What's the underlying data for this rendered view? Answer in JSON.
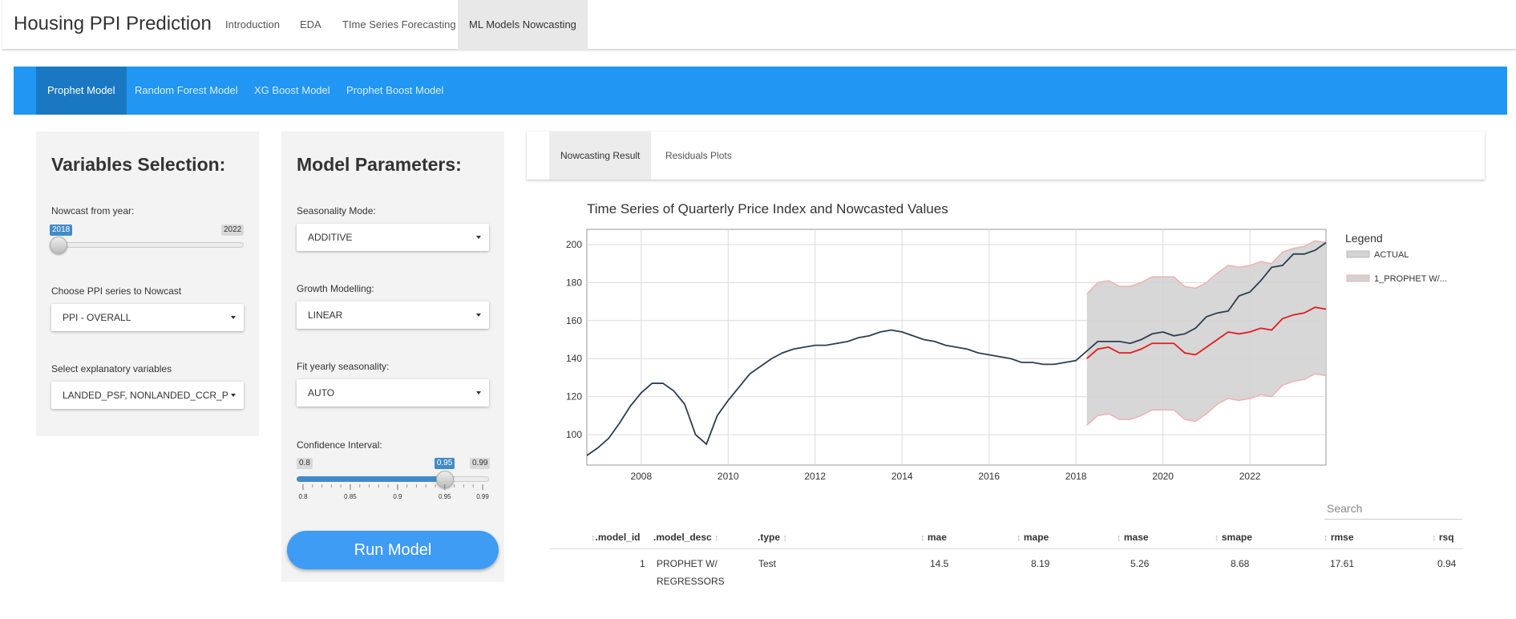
{
  "app_title": "Housing PPI Prediction",
  "nav_tabs": [
    "Introduction",
    "EDA",
    "TIme Series Forecasting",
    "ML Models Nowcasting"
  ],
  "sub_tabs": [
    "Prophet Model",
    "Random Forest Model",
    "XG Boost Model",
    "Prophet Boost Model"
  ],
  "variables_panel": {
    "title": "Variables Selection:",
    "nowcast_label": "Nowcast from year:",
    "nowcast_min": "2018",
    "nowcast_max": "2022",
    "nowcast_fraction": 0.0,
    "ppi_label": "Choose PPI series to Nowcast",
    "ppi_value": "PPI - OVERALL",
    "explanatory_label": "Select explanatory variables",
    "explanatory_value": "LANDED_PSF, NONLANDED_CCR_P"
  },
  "params_panel": {
    "title": "Model Parameters:",
    "seasonality_label": "Seasonality Mode:",
    "seasonality_value": "ADDITIVE",
    "growth_label": "Growth Modelling:",
    "growth_value": "LINEAR",
    "yearly_label": "Fit yearly seasonality:",
    "yearly_value": "AUTO",
    "ci_label": "Confidence Interval:",
    "ci_min": "0.8",
    "ci_max": "0.99",
    "ci_value": "0.95",
    "ci_ticks": [
      "0.8",
      "0.85",
      "0.9",
      "0.95",
      "0.99"
    ]
  },
  "run_button": "Run Model",
  "result_tabs": [
    "Nowcasting Result",
    "Residuals Plots"
  ],
  "chart_data": {
    "type": "line",
    "title": "Time Series of Quarterly Price Index and Nowcasted Values",
    "legend_title": "Legend",
    "legend_placement": "right",
    "x_ticks": [
      "2008",
      "2010",
      "2012",
      "2014",
      "2016",
      "2018",
      "2020",
      "2022"
    ],
    "y_ticks": [
      "100",
      "120",
      "140",
      "160",
      "180",
      "200"
    ],
    "xlim": [
      2006.75,
      2023.75
    ],
    "ylim": [
      84,
      208
    ],
    "grid": true,
    "colors": {
      "actual": "#2c3e50",
      "forecast": "#e41a1c",
      "band_fill": "#d3d3d3",
      "band_edge": "#f0b0b0"
    },
    "series": [
      {
        "name": "ACTUAL",
        "x": [
          2006.75,
          2007,
          2007.25,
          2007.5,
          2007.75,
          2008,
          2008.25,
          2008.5,
          2008.75,
          2009,
          2009.25,
          2009.5,
          2009.75,
          2010,
          2010.25,
          2010.5,
          2010.75,
          2011,
          2011.25,
          2011.5,
          2011.75,
          2012,
          2012.25,
          2012.5,
          2012.75,
          2013,
          2013.25,
          2013.5,
          2013.75,
          2014,
          2014.25,
          2014.5,
          2014.75,
          2015,
          2015.25,
          2015.5,
          2015.75,
          2016,
          2016.25,
          2016.5,
          2016.75,
          2017,
          2017.25,
          2017.5,
          2017.75,
          2018,
          2018.25,
          2018.5,
          2018.75,
          2019,
          2019.25,
          2019.5,
          2019.75,
          2020,
          2020.25,
          2020.5,
          2020.75,
          2021,
          2021.25,
          2021.5,
          2021.75,
          2022,
          2022.25,
          2022.5,
          2022.75,
          2023,
          2023.25,
          2023.5,
          2023.75
        ],
        "values": [
          89,
          93,
          98,
          106,
          115,
          122,
          127,
          127,
          123,
          116,
          100,
          95,
          110,
          118,
          125,
          132,
          136,
          140,
          143,
          145,
          146,
          147,
          147,
          148,
          149,
          151,
          152,
          154,
          155,
          154,
          152,
          150,
          149,
          147,
          146,
          145,
          143,
          142,
          141,
          140,
          138,
          138,
          137,
          137,
          138,
          139,
          144,
          149,
          149,
          149,
          148,
          150,
          153,
          154,
          152,
          153,
          156,
          162,
          164,
          165,
          173,
          175,
          181,
          188,
          189,
          195,
          195,
          197,
          201
        ]
      },
      {
        "name": "1_PROPHET W/...",
        "legend_label": "1_PROPHET W/...",
        "x": [
          2018.25,
          2018.5,
          2018.75,
          2019,
          2019.25,
          2019.5,
          2019.75,
          2020,
          2020.25,
          2020.5,
          2020.75,
          2021,
          2021.25,
          2021.5,
          2021.75,
          2022,
          2022.25,
          2022.5,
          2022.75,
          2023,
          2023.25,
          2023.5,
          2023.75
        ],
        "values": [
          140,
          145,
          146,
          143,
          143,
          145,
          148,
          148,
          148,
          143,
          142,
          146,
          150,
          154,
          153,
          154,
          156,
          155,
          161,
          163,
          164,
          167,
          166
        ],
        "upper": [
          174,
          180,
          181,
          178,
          178,
          180,
          183,
          183,
          183,
          178,
          177,
          180,
          185,
          189,
          188,
          189,
          191,
          190,
          196,
          198,
          199,
          202,
          201
        ],
        "lower": [
          105,
          110,
          111,
          108,
          108,
          110,
          113,
          113,
          113,
          108,
          107,
          111,
          116,
          119,
          118,
          119,
          121,
          120,
          126,
          128,
          129,
          132,
          131
        ]
      }
    ]
  },
  "table": {
    "search_label": "Search",
    "columns": [
      ".model_id",
      ".model_desc",
      ".type",
      "mae",
      "mape",
      "mase",
      "smape",
      "rmse",
      "rsq"
    ],
    "rows": [
      {
        "model_id": "1",
        "model_desc_1": "PROPHET W/",
        "model_desc_2": "REGRESSORS",
        "type": "Test",
        "mae": "14.5",
        "mape": "8.19",
        "mase": "5.26",
        "smape": "8.68",
        "rmse": "17.61",
        "rsq": "0.94"
      }
    ]
  }
}
